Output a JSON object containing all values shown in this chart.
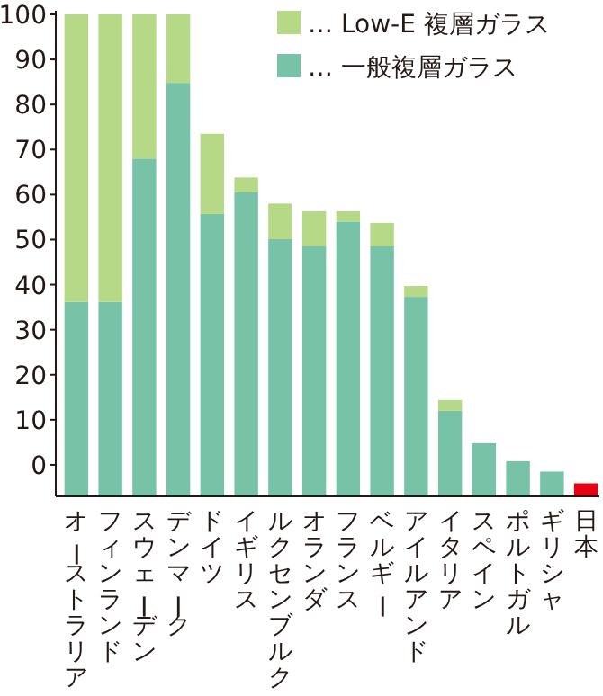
{
  "chart_data": {
    "type": "bar",
    "legend": "top right",
    "categories": [
      "オーストラリア",
      "フィンランド",
      "スウェーデン",
      "デンマーク",
      "ドイツ",
      "イギリス",
      "ルクセンブルク",
      "オランダ",
      "フランス",
      "ベルギー",
      "アイルアンド",
      "イタリア",
      "スペイン",
      "ポルトガル",
      "ギリシャ",
      "日本"
    ],
    "ylim": [
      -7,
      100
    ],
    "yticks": [
      0,
      10,
      20,
      30,
      40,
      50,
      60,
      70,
      80,
      90,
      100
    ],
    "series": [
      {
        "name": "… 一般複層ガラス",
        "color": "#78c3a8",
        "colors": [
          "#78c3a8",
          "#78c3a8",
          "#78c3a8",
          "#78c3a8",
          "#78c3a8",
          "#78c3a8",
          "#78c3a8",
          "#78c3a8",
          "#78c3a8",
          "#78c3a8",
          "#78c3a8",
          "#78c3a8",
          "#78c3a8",
          "#78c3a8",
          "#78c3a8",
          "#e60012"
        ],
        "base": [
          -7,
          -7,
          -7,
          -7,
          -7,
          -7,
          -7,
          -7,
          -7,
          -7,
          -7,
          -7,
          -7,
          -7,
          -7,
          -7
        ],
        "values": [
          43.2,
          43.2,
          75,
          91.8,
          62.7,
          67.5,
          57.1,
          55.5,
          61,
          55.5,
          44.3,
          19,
          11.8,
          7.8,
          5.5,
          2.9
        ]
      },
      {
        "name": "… Low-E 複層ガラス",
        "color": "#b5d987",
        "base": [
          36.2,
          36.2,
          68,
          84.8,
          55.7,
          60.5,
          50.1,
          48.5,
          54,
          48.5,
          37.3,
          12,
          null,
          null,
          null,
          null
        ],
        "values": [
          63.8,
          63.8,
          32,
          15.2,
          17.8,
          3.3,
          7.9,
          7.8,
          2.3,
          5.2,
          2.4,
          2.4,
          null,
          null,
          null,
          null
        ]
      }
    ]
  }
}
